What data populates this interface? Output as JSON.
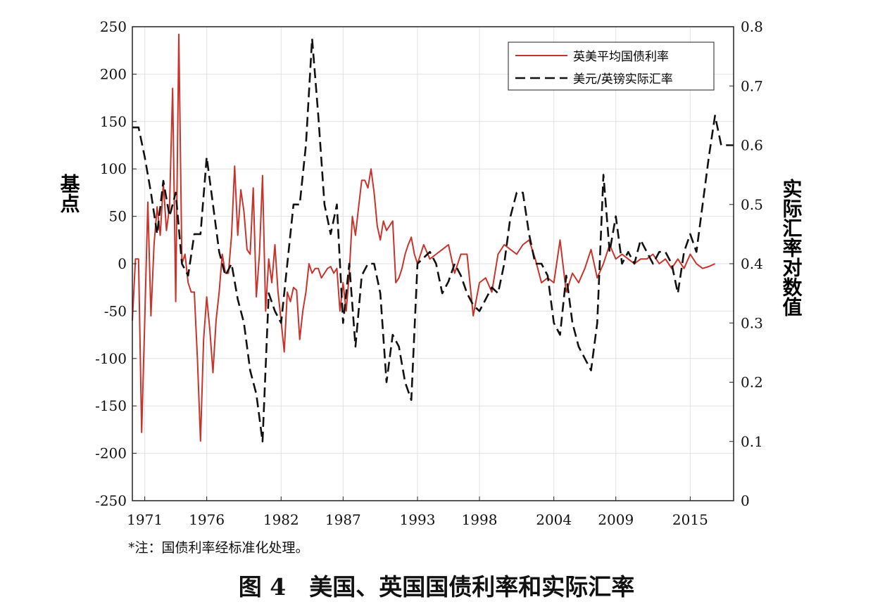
{
  "chart_data": {
    "type": "line",
    "ylabel": "基点",
    "y2label": "实际汇率对数值",
    "ylim": [
      -250,
      250
    ],
    "y2lim": [
      0,
      0.8
    ],
    "yticks": [
      -250,
      -200,
      -150,
      -100,
      -50,
      0,
      50,
      100,
      150,
      200,
      250
    ],
    "y2ticks": [
      0,
      0.1,
      0.2,
      0.3,
      0.4,
      0.5,
      0.6,
      0.7,
      0.8
    ],
    "xlim": [
      1970,
      2018.5
    ],
    "xticks": [
      1971,
      1976,
      1982,
      1987,
      1993,
      1998,
      2004,
      2009,
      2015
    ],
    "grid": true,
    "legend_position": "top-right",
    "series": [
      {
        "name": "英美平均国债利率",
        "axis": "left",
        "color": "#c8342b",
        "x": [
          1970.0,
          1970.25,
          1970.5,
          1970.75,
          1971.0,
          1971.25,
          1971.5,
          1971.75,
          1972.0,
          1972.25,
          1972.5,
          1972.75,
          1973.0,
          1973.25,
          1973.5,
          1973.75,
          1974.0,
          1974.25,
          1974.5,
          1974.75,
          1975.0,
          1975.25,
          1975.5,
          1975.75,
          1976.0,
          1976.25,
          1976.5,
          1976.75,
          1977.0,
          1977.25,
          1977.5,
          1977.75,
          1978.0,
          1978.25,
          1978.5,
          1978.75,
          1979.0,
          1979.25,
          1979.5,
          1979.75,
          1980.0,
          1980.25,
          1980.5,
          1980.75,
          1981.0,
          1981.25,
          1981.5,
          1981.75,
          1982.0,
          1982.25,
          1982.5,
          1982.75,
          1983.0,
          1983.25,
          1983.5,
          1983.75,
          1984.0,
          1984.25,
          1984.5,
          1984.75,
          1985.0,
          1985.25,
          1985.5,
          1985.75,
          1986.0,
          1986.25,
          1986.5,
          1986.75,
          1987.0,
          1987.25,
          1987.5,
          1987.75,
          1988.0,
          1988.25,
          1988.5,
          1988.75,
          1989.0,
          1989.25,
          1989.5,
          1989.75,
          1990.0,
          1990.25,
          1990.5,
          1990.75,
          1991.0,
          1991.25,
          1991.5,
          1991.75,
          1992.0,
          1992.25,
          1992.5,
          1992.75,
          1993.0,
          1993.5,
          1994.0,
          1994.5,
          1995.0,
          1995.5,
          1996.0,
          1996.5,
          1997.0,
          1997.5,
          1998.0,
          1998.5,
          1999.0,
          1999.5,
          2000.0,
          2000.5,
          2001.0,
          2001.5,
          2002.0,
          2002.5,
          2003.0,
          2003.5,
          2004.0,
          2004.5,
          2005.0,
          2005.5,
          2006.0,
          2006.5,
          2007.0,
          2007.5,
          2008.0,
          2008.5,
          2009.0,
          2009.5,
          2010.0,
          2010.5,
          2011.0,
          2011.5,
          2012.0,
          2012.5,
          2013.0,
          2013.5,
          2014.0,
          2014.5,
          2015.0,
          2015.5,
          2016.0,
          2016.5,
          2017.0
        ],
        "values": [
          -60,
          5,
          5,
          -178,
          -60,
          65,
          -55,
          20,
          60,
          30,
          85,
          35,
          60,
          185,
          -40,
          242,
          0,
          10,
          -20,
          -30,
          -30,
          -100,
          -187,
          -80,
          -35,
          -70,
          -115,
          -60,
          -30,
          10,
          -10,
          -10,
          30,
          103,
          30,
          78,
          55,
          15,
          10,
          80,
          -35,
          10,
          93,
          -50,
          5,
          -20,
          20,
          -30,
          -60,
          -93,
          -30,
          -40,
          -25,
          -28,
          -80,
          -50,
          -30,
          0,
          -10,
          -5,
          -5,
          -15,
          -10,
          -5,
          -3,
          -10,
          -5,
          -50,
          -20,
          -50,
          -10,
          50,
          30,
          60,
          88,
          88,
          80,
          100,
          75,
          40,
          25,
          45,
          35,
          40,
          45,
          -20,
          -15,
          -5,
          10,
          20,
          28,
          10,
          0,
          20,
          5,
          10,
          15,
          20,
          -10,
          10,
          10,
          -55,
          -20,
          -15,
          -30,
          10,
          20,
          15,
          10,
          20,
          25,
          5,
          -20,
          -15,
          -20,
          25,
          -30,
          -10,
          -20,
          -5,
          15,
          -15,
          0,
          20,
          5,
          10,
          5,
          0,
          5,
          5,
          10,
          0,
          5,
          -5,
          5,
          -5,
          10,
          0,
          -5,
          -3,
          0
        ]
      },
      {
        "name": "美元/英镑实际汇率",
        "axis": "right",
        "color": "#111111",
        "dash": true,
        "x": [
          1970.0,
          1970.5,
          1971.0,
          1971.5,
          1972.0,
          1972.5,
          1973.0,
          1973.5,
          1974.0,
          1974.5,
          1975.0,
          1975.5,
          1976.0,
          1976.5,
          1977.0,
          1977.5,
          1978.0,
          1978.5,
          1979.0,
          1979.5,
          1980.0,
          1980.5,
          1981.0,
          1981.5,
          1982.0,
          1982.5,
          1983.0,
          1983.5,
          1984.0,
          1984.5,
          1985.0,
          1985.5,
          1986.0,
          1986.5,
          1987.0,
          1987.5,
          1988.0,
          1988.5,
          1989.0,
          1989.5,
          1990.0,
          1990.5,
          1991.0,
          1991.5,
          1992.0,
          1992.5,
          1993.0,
          1993.5,
          1994.0,
          1994.5,
          1995.0,
          1995.5,
          1996.0,
          1996.5,
          1997.0,
          1997.5,
          1998.0,
          1998.5,
          1999.0,
          1999.5,
          2000.0,
          2000.5,
          2001.0,
          2001.5,
          2002.0,
          2002.5,
          2003.0,
          2003.5,
          2004.0,
          2004.5,
          2005.0,
          2005.5,
          2006.0,
          2006.5,
          2007.0,
          2007.5,
          2008.0,
          2008.5,
          2009.0,
          2009.5,
          2010.0,
          2010.5,
          2011.0,
          2011.5,
          2012.0,
          2012.5,
          2013.0,
          2013.5,
          2014.0,
          2014.5,
          2015.0,
          2015.5,
          2016.0,
          2016.5,
          2017.0,
          2017.5,
          2018.0,
          2018.5
        ],
        "values": [
          0.63,
          0.63,
          0.58,
          0.52,
          0.45,
          0.54,
          0.48,
          0.52,
          0.4,
          0.38,
          0.45,
          0.45,
          0.58,
          0.5,
          0.42,
          0.38,
          0.4,
          0.34,
          0.3,
          0.22,
          0.18,
          0.1,
          0.35,
          0.32,
          0.3,
          0.4,
          0.5,
          0.5,
          0.6,
          0.78,
          0.65,
          0.5,
          0.45,
          0.5,
          0.3,
          0.4,
          0.26,
          0.38,
          0.4,
          0.4,
          0.35,
          0.2,
          0.28,
          0.26,
          0.2,
          0.17,
          0.4,
          0.41,
          0.42,
          0.4,
          0.35,
          0.37,
          0.4,
          0.38,
          0.35,
          0.33,
          0.32,
          0.34,
          0.36,
          0.35,
          0.4,
          0.48,
          0.52,
          0.52,
          0.45,
          0.4,
          0.4,
          0.38,
          0.3,
          0.28,
          0.38,
          0.3,
          0.26,
          0.24,
          0.22,
          0.3,
          0.55,
          0.42,
          0.48,
          0.4,
          0.42,
          0.4,
          0.44,
          0.42,
          0.4,
          0.42,
          0.42,
          0.4,
          0.35,
          0.42,
          0.45,
          0.42,
          0.5,
          0.58,
          0.65,
          0.6,
          0.6,
          0.6
        ]
      }
    ]
  },
  "legend": {
    "items": [
      "英美平均国债利率",
      "美元/英镑实际汇率"
    ]
  },
  "note": "*注：国债利率经标准化处理。",
  "caption": "图 4　美国、英国国债利率和实际汇率"
}
